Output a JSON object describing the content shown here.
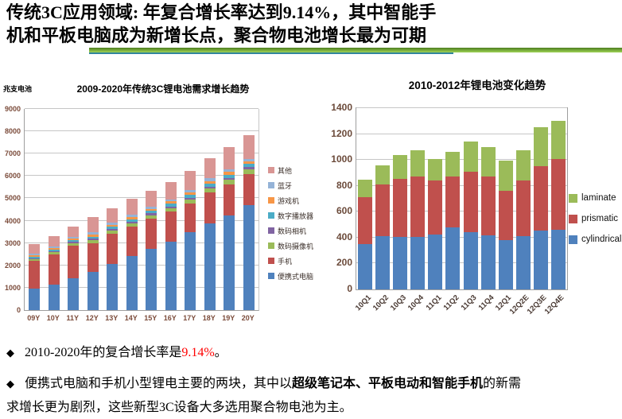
{
  "header": {
    "line1": "传统3C应用领域: 年复合增长率达到9.14%，其中智能手",
    "line2": "机和平板电脑成为新增长点，聚合物电池增长最为可期"
  },
  "chart_data": [
    {
      "type": "bar",
      "stacked": true,
      "title": "2009-2020年传统3C锂电池需求增长趋势",
      "unit_label": "兆支电池",
      "categories": [
        "09Y",
        "10Y",
        "11Y",
        "12Y",
        "13Y",
        "14Y",
        "15Y",
        "16Y",
        "17Y",
        "18Y",
        "19Y",
        "20Y"
      ],
      "series": [
        {
          "name": "便携式电脑",
          "color": "#4F81BD",
          "values": [
            950,
            1150,
            1420,
            1720,
            2080,
            2430,
            2730,
            3070,
            3470,
            3880,
            4250,
            4680
          ]
        },
        {
          "name": "手机",
          "color": "#C0504D",
          "values": [
            1240,
            1340,
            1470,
            1255,
            1330,
            1310,
            1370,
            1330,
            1300,
            1370,
            1370,
            1400
          ]
        },
        {
          "name": "数码摄像机",
          "color": "#9BBB59",
          "values": [
            90,
            95,
            100,
            140,
            135,
            145,
            150,
            160,
            175,
            185,
            200,
            230
          ]
        },
        {
          "name": "数码相机",
          "color": "#8064A2",
          "values": [
            50,
            50,
            55,
            70,
            70,
            75,
            75,
            80,
            85,
            90,
            95,
            100
          ]
        },
        {
          "name": "数字播放器",
          "color": "#4BACC6",
          "values": [
            70,
            75,
            80,
            105,
            105,
            110,
            110,
            115,
            125,
            130,
            140,
            120
          ]
        },
        {
          "name": "游戏机",
          "color": "#F79646",
          "values": [
            60,
            65,
            65,
            90,
            90,
            95,
            100,
            105,
            110,
            115,
            125,
            110
          ]
        },
        {
          "name": "蓝牙",
          "color": "#95B3D7",
          "values": [
            60,
            65,
            70,
            90,
            90,
            95,
            95,
            100,
            115,
            120,
            130,
            110
          ]
        },
        {
          "name": "其他",
          "color": "#D99694",
          "values": [
            430,
            460,
            470,
            690,
            650,
            710,
            720,
            760,
            850,
            890,
            970,
            1080
          ]
        }
      ],
      "ylim": [
        0,
        9000
      ],
      "ytick_step": 1000,
      "legend_position": "right",
      "grid": true
    },
    {
      "type": "bar",
      "stacked": true,
      "title": "2010-2012年锂电池变化趋势",
      "categories": [
        "10Q1",
        "10Q2",
        "10Q3",
        "10Q4",
        "11Q1",
        "11Q2",
        "11Q3",
        "11Q4",
        "12Q1",
        "12Q2E",
        "12Q3E",
        "12Q4E"
      ],
      "series": [
        {
          "name": "cylindrical",
          "color": "#4F81BD",
          "values": [
            350,
            410,
            405,
            405,
            425,
            480,
            445,
            420,
            380,
            410,
            455,
            460
          ]
        },
        {
          "name": "prismatic",
          "color": "#C0504D",
          "values": [
            365,
            400,
            450,
            465,
            415,
            395,
            465,
            450,
            380,
            430,
            495,
            545
          ]
        },
        {
          "name": "laminate",
          "color": "#9BBB59",
          "values": [
            135,
            145,
            185,
            205,
            170,
            185,
            230,
            230,
            235,
            235,
            305,
            295
          ]
        }
      ],
      "ylim": [
        0,
        1400
      ],
      "ytick_step": 200,
      "legend_position": "right",
      "grid": true
    }
  ],
  "bullets": {
    "marker": "◆",
    "item1": {
      "pre": "2010-2020年的复合增长率是",
      "highlight": "9.14%",
      "post": "。"
    },
    "item2": {
      "pre": "便携式电脑和手机小型锂电主要的两块，其中以",
      "bold": "超级笔记本、平板电动和智能手机",
      "post": "的新需求增长更为剧烈，这些新型3C设备大多选用聚合物电池为主。"
    }
  },
  "colors": {
    "highlight_red": "#FF0000",
    "underline_green_dark": "#4C7D1F",
    "underline_green_light": "#9FD456",
    "underline_teal": "#31859C",
    "axis_label": "#7B4B3A",
    "gridline": "#C6C6C6"
  }
}
